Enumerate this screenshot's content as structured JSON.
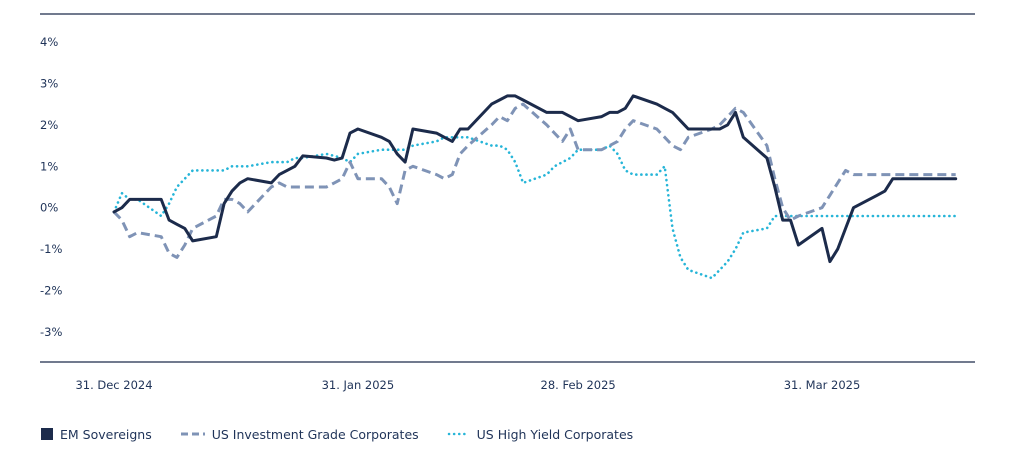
{
  "chart_data": {
    "type": "line",
    "ylim": [
      -0.04,
      0.04
    ],
    "y_ticks": [
      "4%",
      "3%",
      "2%",
      "1%",
      "0%",
      "-1%",
      "-2%",
      "-3%"
    ],
    "x_ticks": [
      "31. Dec 2024",
      "31. Jan 2025",
      "28. Feb 2025",
      "31. Mar 2025"
    ],
    "grid": false,
    "legend_position": "bottom-left",
    "x": [
      "2024-12-31",
      "2025-01-01",
      "2025-01-02",
      "2025-01-03",
      "2025-01-06",
      "2025-01-07",
      "2025-01-08",
      "2025-01-09",
      "2025-01-10",
      "2025-01-13",
      "2025-01-14",
      "2025-01-15",
      "2025-01-16",
      "2025-01-17",
      "2025-01-20",
      "2025-01-21",
      "2025-01-22",
      "2025-01-23",
      "2025-01-24",
      "2025-01-27",
      "2025-01-28",
      "2025-01-29",
      "2025-01-30",
      "2025-01-31",
      "2025-02-03",
      "2025-02-04",
      "2025-02-05",
      "2025-02-06",
      "2025-02-07",
      "2025-02-10",
      "2025-02-11",
      "2025-02-12",
      "2025-02-13",
      "2025-02-14",
      "2025-02-17",
      "2025-02-18",
      "2025-02-19",
      "2025-02-20",
      "2025-02-21",
      "2025-02-24",
      "2025-02-25",
      "2025-02-26",
      "2025-02-27",
      "2025-02-28",
      "2025-03-03",
      "2025-03-04",
      "2025-03-05",
      "2025-03-06",
      "2025-03-07",
      "2025-03-10",
      "2025-03-11",
      "2025-03-12",
      "2025-03-13",
      "2025-03-14",
      "2025-03-17",
      "2025-03-18",
      "2025-03-19",
      "2025-03-20",
      "2025-03-21",
      "2025-03-24",
      "2025-03-25",
      "2025-03-26",
      "2025-03-27",
      "2025-03-28",
      "2025-03-31",
      "2025-04-01",
      "2025-04-02",
      "2025-04-03",
      "2025-04-04",
      "2025-04-07",
      "2025-04-08",
      "2025-04-09",
      "2025-04-10",
      "2025-04-11",
      "2025-04-14",
      "2025-04-15",
      "2025-04-16",
      "2025-04-17"
    ],
    "series": [
      {
        "name": "EM Sovereigns",
        "color": "#1c2b4b",
        "style": "solid",
        "values": [
          -0.1,
          0.0,
          0.2,
          0.2,
          0.2,
          -0.3,
          -0.4,
          -0.5,
          -0.8,
          -0.7,
          0.1,
          0.4,
          0.6,
          0.7,
          0.6,
          0.8,
          0.9,
          1.0,
          1.25,
          1.2,
          1.15,
          1.2,
          1.8,
          1.9,
          1.7,
          1.6,
          1.3,
          1.1,
          1.9,
          1.8,
          1.7,
          1.6,
          1.9,
          1.9,
          2.5,
          2.6,
          2.7,
          2.7,
          2.6,
          2.3,
          2.3,
          2.3,
          2.2,
          2.1,
          2.2,
          2.3,
          2.3,
          2.4,
          2.7,
          2.5,
          2.4,
          2.3,
          2.1,
          1.9,
          1.9,
          1.9,
          2.0,
          2.3,
          1.7,
          1.2,
          0.5,
          -0.3,
          -0.3,
          -0.9,
          -0.5,
          -1.3,
          -1.0,
          -0.5,
          0.0,
          0.3,
          0.4,
          0.7,
          0.7,
          0.7,
          0.7,
          0.7,
          0.7,
          0.7
        ]
      },
      {
        "name": "US Investment Grade Corporates",
        "color": "#7f93b6",
        "style": "dashed",
        "values": [
          -0.1,
          -0.3,
          -0.7,
          -0.6,
          -0.7,
          -1.1,
          -1.2,
          -0.9,
          -0.5,
          -0.2,
          0.2,
          0.2,
          0.1,
          -0.1,
          0.5,
          0.6,
          0.5,
          0.5,
          0.5,
          0.5,
          0.6,
          0.7,
          1.1,
          0.7,
          0.7,
          0.5,
          0.1,
          0.9,
          1.0,
          0.8,
          0.7,
          0.8,
          1.3,
          1.5,
          2.0,
          2.2,
          2.1,
          2.4,
          2.5,
          2.0,
          1.8,
          1.6,
          1.9,
          1.4,
          1.4,
          1.5,
          1.6,
          1.9,
          2.1,
          1.9,
          1.7,
          1.5,
          1.4,
          1.7,
          1.9,
          2.0,
          2.2,
          2.4,
          2.3,
          1.5,
          0.7,
          0.0,
          -0.3,
          -0.2,
          0.0,
          0.3,
          0.6,
          0.9,
          0.8,
          0.8,
          0.8,
          0.8,
          0.8,
          0.8,
          0.8,
          0.8,
          0.8,
          0.8
        ]
      },
      {
        "name": "US High Yield Corporates",
        "color": "#26b5d8",
        "style": "dotted",
        "values": [
          -0.1,
          0.35,
          0.2,
          0.2,
          -0.2,
          0.1,
          0.5,
          0.7,
          0.9,
          0.9,
          0.9,
          1.0,
          1.0,
          1.0,
          1.1,
          1.1,
          1.1,
          1.2,
          1.2,
          1.3,
          1.25,
          1.2,
          1.1,
          1.3,
          1.4,
          1.4,
          1.4,
          1.4,
          1.5,
          1.6,
          1.7,
          1.7,
          1.7,
          1.7,
          1.5,
          1.5,
          1.4,
          1.1,
          0.6,
          0.8,
          1.0,
          1.1,
          1.2,
          1.4,
          1.4,
          1.5,
          1.3,
          0.9,
          0.8,
          0.8,
          1.0,
          -0.5,
          -1.2,
          -1.5,
          -1.7,
          -1.5,
          -1.3,
          -1.0,
          -0.6,
          -0.5,
          -0.2,
          -0.2,
          -0.2,
          -0.2,
          -0.2,
          -0.2,
          -0.2,
          -0.2,
          -0.2,
          -0.2,
          -0.2,
          -0.2,
          -0.2,
          -0.2,
          -0.2,
          -0.2,
          -0.2,
          -0.2
        ]
      }
    ]
  }
}
